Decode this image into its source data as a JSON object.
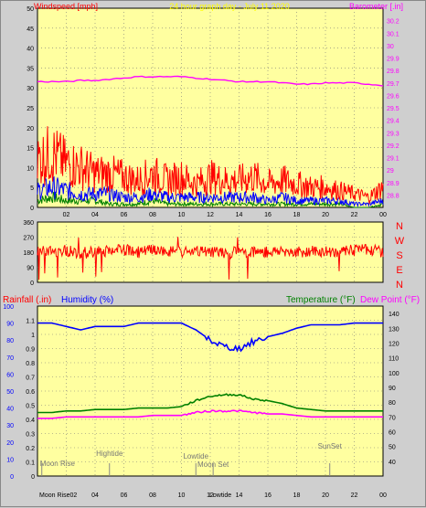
{
  "header": {
    "left_label": "Windspeed [mph]",
    "center_label": "24 hour graph day - July 11 2020",
    "right_label": "Barometer [.in]"
  },
  "colors": {
    "plot_bg": "#ffffa0",
    "frame_bg": "#cfcfcf",
    "wind_gust": "#ff0000",
    "wind_avg": "#0000ff",
    "wind_min": "#008000",
    "barometer": "#ff00ff",
    "direction": "#ff0000",
    "humidity": "#0000ff",
    "temperature": "#008000",
    "dewpoint": "#ff00ff",
    "rain_label": "#ff0000",
    "left_axis_label": "#0000ff"
  },
  "x_ticks": [
    "02",
    "04",
    "06",
    "08",
    "10",
    "12",
    "14",
    "16",
    "18",
    "20",
    "22",
    "00"
  ],
  "chart_data": [
    {
      "type": "line",
      "title": "24 hour graph day - July 11 2020",
      "left_axis": {
        "label": "Windspeed [mph]",
        "range": [
          0,
          50
        ],
        "ticks": [
          "0",
          "5",
          "10",
          "15",
          "20",
          "25",
          "30",
          "35",
          "40",
          "45",
          "50"
        ]
      },
      "right_axis": {
        "label": "Barometer [.in]",
        "range": [
          28.7,
          30.3
        ],
        "ticks": [
          "28.8",
          "28.9",
          "29",
          "29.1",
          "29.2",
          "29.3",
          "29.4",
          "29.5",
          "29.6",
          "29.7",
          "29.8",
          "29.9",
          "30",
          "30.1",
          "30.2"
        ]
      },
      "x_hours": [
        0,
        1,
        2,
        3,
        4,
        5,
        6,
        7,
        8,
        9,
        10,
        11,
        12,
        13,
        14,
        15,
        16,
        17,
        18,
        19,
        20,
        21,
        22,
        23,
        24
      ],
      "series": [
        {
          "name": "Barometer [.in]",
          "axis": "right",
          "values": [
            29.71,
            29.71,
            29.71,
            29.72,
            29.72,
            29.73,
            29.74,
            29.75,
            29.75,
            29.75,
            29.75,
            29.74,
            29.73,
            29.72,
            29.71,
            29.71,
            29.71,
            29.7,
            29.69,
            29.69,
            29.7,
            29.7,
            29.7,
            29.69,
            29.68
          ]
        },
        {
          "name": "gust",
          "axis": "left",
          "values": [
            14,
            16,
            13,
            12,
            10,
            10,
            9,
            8,
            10,
            8,
            9,
            7,
            9,
            8,
            8,
            9,
            7,
            8,
            7,
            6,
            6,
            5,
            4,
            3,
            6
          ]
        },
        {
          "name": "average",
          "axis": "left",
          "values": [
            5,
            6,
            5,
            4,
            4,
            4,
            3,
            3,
            4,
            3,
            3,
            3,
            3,
            3,
            3,
            3,
            2,
            3,
            2,
            2,
            2,
            2,
            1,
            1,
            2
          ]
        },
        {
          "name": "minimum",
          "axis": "left",
          "values": [
            2,
            3,
            2,
            2,
            2,
            1,
            1,
            1,
            2,
            1,
            1,
            1,
            1,
            1,
            1,
            1,
            1,
            1,
            1,
            1,
            1,
            1,
            0,
            0,
            1
          ]
        }
      ]
    },
    {
      "type": "line",
      "y_ticks": [
        "0",
        "90",
        "180",
        "270",
        "360"
      ],
      "y_range": [
        0,
        360
      ],
      "right_labels": [
        "N",
        "W",
        "S",
        "E",
        "N"
      ],
      "series": [
        {
          "name": "wind direction",
          "values": [
            180,
            185,
            190,
            175,
            180,
            185,
            195,
            180,
            190,
            185,
            180,
            180,
            185,
            175,
            180,
            185,
            180,
            190,
            180,
            185,
            180,
            185,
            190,
            200,
            180
          ]
        }
      ]
    },
    {
      "type": "line",
      "labels": {
        "rainfall": "Rainfall (.in)",
        "humidity": "Humidity (%)",
        "temperature": "Temperature (°F)",
        "dewpoint": "Dew Point (°F)"
      },
      "rain_axis": {
        "range": [
          0,
          1.2
        ],
        "ticks": [
          "0",
          "0.1",
          "0.2",
          "0.3",
          "0.4",
          "0.5",
          "0.6",
          "0.7",
          "0.8",
          "0.9",
          "1",
          "1.1"
        ]
      },
      "humidity_axis": {
        "range": [
          0,
          100
        ],
        "ticks": [
          "0",
          "10",
          "20",
          "30",
          "40",
          "50",
          "60",
          "70",
          "80",
          "90",
          "100"
        ]
      },
      "temperature_axis": {
        "range": [
          30,
          145
        ],
        "ticks": [
          "40",
          "50",
          "60",
          "70",
          "80",
          "90",
          "100",
          "110",
          "120",
          "130",
          "140"
        ]
      },
      "series": [
        {
          "name": "Humidity (%)",
          "axis": "humidity",
          "values": [
            90,
            90,
            88,
            86,
            88,
            88,
            88,
            90,
            90,
            90,
            90,
            86,
            80,
            76,
            75,
            79,
            82,
            84,
            87,
            89,
            89,
            89,
            90,
            90,
            90
          ]
        },
        {
          "name": "Temperature (°F)",
          "axis": "temperature",
          "values": [
            73,
            73,
            74,
            74,
            75,
            75,
            75,
            76,
            76,
            76,
            77,
            81,
            84,
            85,
            85,
            82,
            81,
            79,
            76,
            75,
            74,
            74,
            74,
            74,
            74
          ]
        },
        {
          "name": "Dew Point (°F)",
          "axis": "temperature",
          "values": [
            69,
            69,
            70,
            70,
            70,
            70,
            70,
            70,
            71,
            71,
            71,
            73,
            74,
            74,
            74,
            73,
            72,
            72,
            71,
            70,
            70,
            70,
            70,
            70,
            70
          ]
        }
      ],
      "events": [
        {
          "label": "Moon Rise",
          "hour": 0.3
        },
        {
          "label": "Hightide",
          "hour": 5.0
        },
        {
          "label": "Lowtide",
          "hour": 11.0
        },
        {
          "label": "Moon Set",
          "hour": 12.2
        },
        {
          "label": "SunSet",
          "hour": 20.3
        }
      ],
      "bottom_axis": [
        "Moon Rise02",
        "Lowtide"
      ]
    }
  ]
}
